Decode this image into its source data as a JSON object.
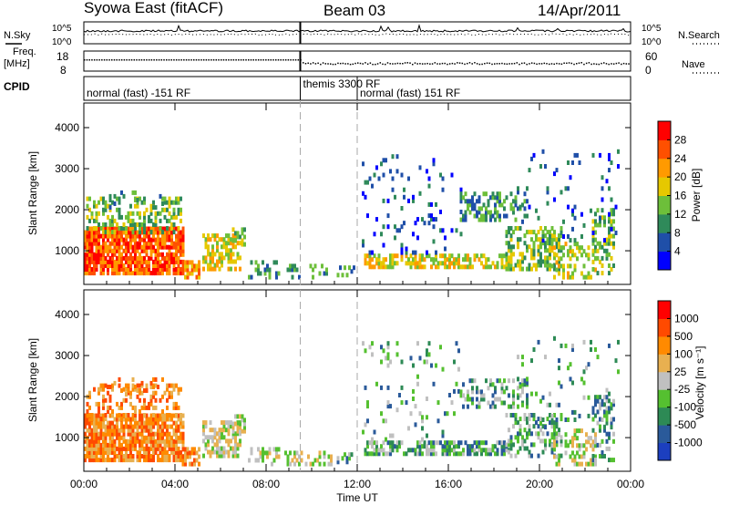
{
  "header": {
    "station": "Syowa East (fitACF)",
    "beam": "Beam 03",
    "date": "14/Apr/2011"
  },
  "noise_panel": {
    "left_label": "N.Sky",
    "right_label": "N.Search",
    "left_ticks": [
      "10^5",
      "10^0"
    ],
    "right_ticks": [
      "10^5",
      "10^0"
    ]
  },
  "freq_panel": {
    "left_label_1": "Freq.",
    "left_label_2": "[MHz]",
    "right_label": "Nave",
    "left_ticks": [
      "18",
      "8"
    ],
    "right_ticks": [
      "60",
      "0"
    ]
  },
  "cpid": {
    "label": "CPID",
    "segments": [
      {
        "text": "normal (fast) -151 RF",
        "start_hour": 0.0,
        "end_hour": 9.5
      },
      {
        "text": "themis 3300 RF",
        "start_hour": 9.5,
        "end_hour": 12.0
      },
      {
        "text": "normal (fast) 151 RF",
        "start_hour": 12.0,
        "end_hour": 24.0
      }
    ]
  },
  "chart_data": [
    {
      "type": "heatmap",
      "title": "",
      "xlabel": "Time UT",
      "ylabel": "Slant Range [km]",
      "xlim": [
        0,
        24
      ],
      "ylim": [
        180,
        4600
      ],
      "y_ticks": [
        1000,
        2000,
        3000,
        4000
      ],
      "quantity": "Power",
      "colorbar_label": "Power [dB]",
      "colorbar_ticks": [
        "4",
        "8",
        "12",
        "16",
        "20",
        "24",
        "28"
      ],
      "colorbar_colors": [
        "#0000ff",
        "#1f4fa8",
        "#2f8a5a",
        "#6dbf3a",
        "#e6c800",
        "#ff9a00",
        "#ff5000",
        "#ff0000"
      ]
    },
    {
      "type": "heatmap",
      "title": "",
      "xlabel": "Time UT",
      "ylabel": "Slant Range [km]",
      "xlim": [
        0,
        24
      ],
      "ylim": [
        180,
        4600
      ],
      "y_ticks": [
        1000,
        2000,
        3000,
        4000
      ],
      "quantity": "Velocity",
      "colorbar_label": "Velocity [m s⁻¹]",
      "colorbar_ticks": [
        "1000",
        "500",
        "100",
        "25",
        "-25",
        "-100",
        "-500",
        "-1000"
      ],
      "colorbar_colors": [
        "#1c3fbf",
        "#2a5a9a",
        "#2d8a55",
        "#55c030",
        "#c0c0c0",
        "#e8b050",
        "#ff8a00",
        "#ff4a00",
        "#ff0000"
      ]
    }
  ],
  "time_axis": {
    "ticks": [
      "00:00",
      "04:00",
      "08:00",
      "12:00",
      "16:00",
      "20:00",
      "00:00"
    ],
    "label": "Time UT"
  }
}
